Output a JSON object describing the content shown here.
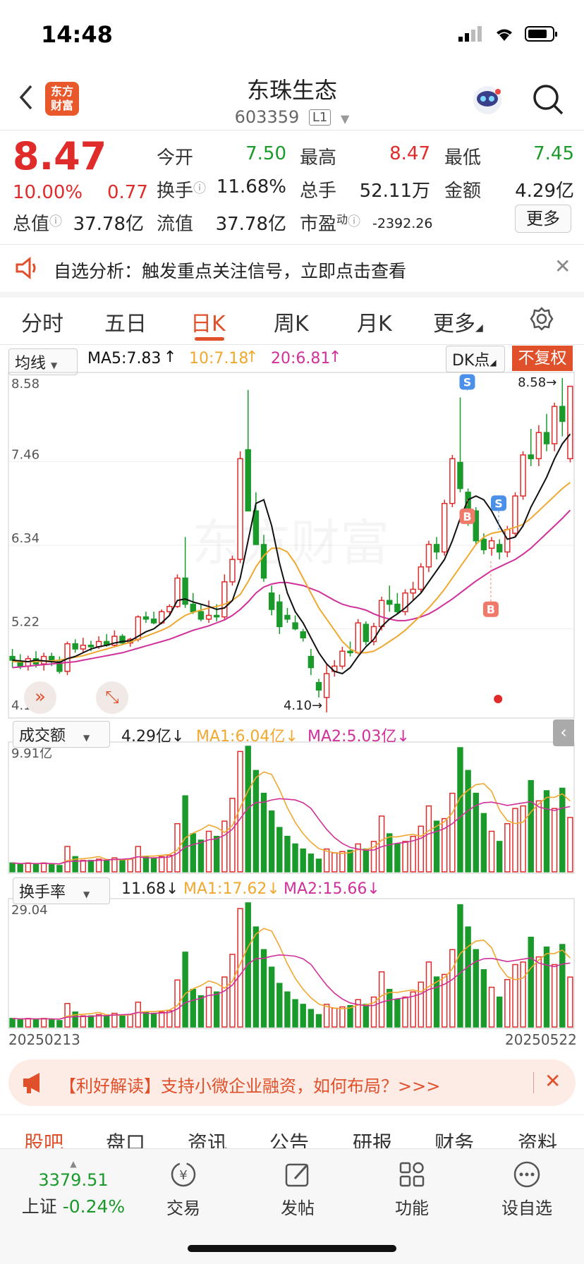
{
  "status_bar": {
    "time": "14:48"
  },
  "header": {
    "title": "东珠生态",
    "code": "603359",
    "level": "L1",
    "logo_line1": "东方",
    "logo_line2": "财富"
  },
  "quote": {
    "price": "8.47",
    "change_pct": "10.00%",
    "change": "0.77",
    "open_label": "今开",
    "open": "7.50",
    "high_label": "最高",
    "high": "8.47",
    "low_label": "最低",
    "low": "7.45",
    "turnover_label": "换手",
    "turnover": "11.68%",
    "volume_label": "总手",
    "volume": "52.11万",
    "amount_label": "金额",
    "amount": "4.29亿",
    "mktcap_label": "总值",
    "mktcap": "37.78亿",
    "float_label": "流值",
    "float": "37.78亿",
    "pe_label": "市盈",
    "pe_sup": "动",
    "pe": "-2392.26",
    "more_button": "更多"
  },
  "alert": {
    "text": "自选分析：触发重点关注信号，立即点击查看"
  },
  "tabs": {
    "items": [
      "分时",
      "五日",
      "日K",
      "周K",
      "月K",
      "更多"
    ]
  },
  "kline": {
    "indicator_select": "均线",
    "ma5": "MA5:7.83",
    "ma10": "10:7.18",
    "ma20": "20:6.81",
    "dk_button": "DK点",
    "adjust_button": "不复权",
    "y_ticks": [
      "8.58",
      "7.46",
      "6.34",
      "5.22",
      "4.10"
    ],
    "max_label": "8.58→",
    "min_label": "4.10→",
    "signals": [
      "S",
      "S",
      "B",
      "B"
    ],
    "watermark": "东方财富"
  },
  "volume_panel": {
    "select": "成交额",
    "value": "4.29亿",
    "ma1": "MA1:6.04亿",
    "ma2": "MA2:5.03亿",
    "max_label": "9.91亿"
  },
  "turnover_panel": {
    "select": "换手率",
    "value": "11.68",
    "ma1": "MA1:17.62",
    "ma2": "MA2:15.66",
    "max_label": "29.04",
    "date_start": "20250213",
    "date_end": "20250522"
  },
  "banner": {
    "text": "【利好解读】支持小微企业融资，如何布局？>>>"
  },
  "bottom_tabs": {
    "items": [
      "股吧",
      "盘口",
      "资讯",
      "公告",
      "研报",
      "财务",
      "资料"
    ]
  },
  "bottom_nav": {
    "index_value": "3379.51",
    "index_name": "上证",
    "index_change": "-0.24%",
    "items": [
      "交易",
      "发帖",
      "功能",
      "设自选"
    ]
  },
  "colors": {
    "up": "#e02b2b",
    "down": "#1a9a2a",
    "ma5": "#111111",
    "ma10": "#f0a830",
    "ma20": "#d0309a",
    "accent": "#e0502b"
  },
  "chart_data": {
    "type": "candlestick",
    "y_range": [
      4.1,
      8.58
    ],
    "date_range": [
      "20250213",
      "20250522"
    ],
    "candles": [
      {
        "o": 4.85,
        "h": 4.95,
        "l": 4.7,
        "c": 4.8
      },
      {
        "o": 4.78,
        "h": 4.88,
        "l": 4.68,
        "c": 4.72
      },
      {
        "o": 4.72,
        "h": 4.86,
        "l": 4.66,
        "c": 4.82
      },
      {
        "o": 4.82,
        "h": 4.92,
        "l": 4.7,
        "c": 4.75
      },
      {
        "o": 4.75,
        "h": 4.9,
        "l": 4.66,
        "c": 4.85
      },
      {
        "o": 4.85,
        "h": 4.9,
        "l": 4.72,
        "c": 4.78
      },
      {
        "o": 4.78,
        "h": 4.85,
        "l": 4.62,
        "c": 4.65
      },
      {
        "o": 4.65,
        "h": 5.05,
        "l": 4.6,
        "c": 5.02
      },
      {
        "o": 5.02,
        "h": 5.08,
        "l": 4.9,
        "c": 4.95
      },
      {
        "o": 4.95,
        "h": 5.1,
        "l": 4.9,
        "c": 5.0
      },
      {
        "o": 5.0,
        "h": 5.06,
        "l": 4.92,
        "c": 4.98
      },
      {
        "o": 4.98,
        "h": 5.12,
        "l": 4.95,
        "c": 5.05
      },
      {
        "o": 5.05,
        "h": 5.15,
        "l": 4.98,
        "c": 5.0
      },
      {
        "o": 5.0,
        "h": 5.2,
        "l": 4.98,
        "c": 5.12
      },
      {
        "o": 5.12,
        "h": 5.15,
        "l": 5.0,
        "c": 5.03
      },
      {
        "o": 5.03,
        "h": 5.1,
        "l": 4.98,
        "c": 5.08
      },
      {
        "o": 5.08,
        "h": 5.4,
        "l": 5.05,
        "c": 5.38
      },
      {
        "o": 5.38,
        "h": 5.45,
        "l": 5.3,
        "c": 5.35
      },
      {
        "o": 5.35,
        "h": 5.45,
        "l": 5.28,
        "c": 5.3
      },
      {
        "o": 5.3,
        "h": 5.48,
        "l": 5.28,
        "c": 5.45
      },
      {
        "o": 5.45,
        "h": 5.55,
        "l": 5.4,
        "c": 5.52
      },
      {
        "o": 5.52,
        "h": 5.95,
        "l": 5.5,
        "c": 5.9
      },
      {
        "o": 5.9,
        "h": 6.45,
        "l": 5.5,
        "c": 5.55
      },
      {
        "o": 5.55,
        "h": 5.7,
        "l": 5.42,
        "c": 5.45
      },
      {
        "o": 5.45,
        "h": 5.55,
        "l": 5.32,
        "c": 5.35
      },
      {
        "o": 5.35,
        "h": 5.6,
        "l": 5.3,
        "c": 5.4
      },
      {
        "o": 5.4,
        "h": 5.55,
        "l": 5.32,
        "c": 5.38
      },
      {
        "o": 5.38,
        "h": 5.95,
        "l": 5.35,
        "c": 5.85
      },
      {
        "o": 5.85,
        "h": 6.2,
        "l": 5.8,
        "c": 6.15
      },
      {
        "o": 6.15,
        "h": 7.6,
        "l": 6.1,
        "c": 7.5
      },
      {
        "o": 7.62,
        "h": 8.42,
        "l": 6.8,
        "c": 6.8
      },
      {
        "o": 6.8,
        "h": 7.05,
        "l": 6.35,
        "c": 6.35
      },
      {
        "o": 6.35,
        "h": 6.48,
        "l": 5.85,
        "c": 5.9
      },
      {
        "o": 5.7,
        "h": 5.8,
        "l": 5.4,
        "c": 5.48
      },
      {
        "o": 5.58,
        "h": 5.68,
        "l": 5.15,
        "c": 5.25
      },
      {
        "o": 5.4,
        "h": 5.5,
        "l": 5.3,
        "c": 5.35
      },
      {
        "o": 5.3,
        "h": 5.4,
        "l": 5.2,
        "c": 5.22
      },
      {
        "o": 5.18,
        "h": 5.22,
        "l": 5.05,
        "c": 5.1
      },
      {
        "o": 4.85,
        "h": 4.95,
        "l": 4.6,
        "c": 4.7
      },
      {
        "o": 4.5,
        "h": 4.55,
        "l": 4.3,
        "c": 4.4
      },
      {
        "o": 4.3,
        "h": 4.75,
        "l": 4.1,
        "c": 4.62
      },
      {
        "o": 4.65,
        "h": 4.8,
        "l": 4.58,
        "c": 4.72
      },
      {
        "o": 4.72,
        "h": 4.98,
        "l": 4.68,
        "c": 4.92
      },
      {
        "o": 4.92,
        "h": 5.05,
        "l": 4.85,
        "c": 4.9
      },
      {
        "o": 4.9,
        "h": 5.35,
        "l": 4.88,
        "c": 5.3
      },
      {
        "o": 5.28,
        "h": 5.32,
        "l": 5.0,
        "c": 5.05
      },
      {
        "o": 5.05,
        "h": 5.3,
        "l": 5.0,
        "c": 5.25
      },
      {
        "o": 5.25,
        "h": 5.65,
        "l": 5.2,
        "c": 5.6
      },
      {
        "o": 5.6,
        "h": 5.8,
        "l": 5.45,
        "c": 5.55
      },
      {
        "o": 5.55,
        "h": 5.7,
        "l": 5.42,
        "c": 5.45
      },
      {
        "o": 5.45,
        "h": 5.75,
        "l": 5.4,
        "c": 5.7
      },
      {
        "o": 5.7,
        "h": 5.85,
        "l": 5.6,
        "c": 5.75
      },
      {
        "o": 5.75,
        "h": 6.1,
        "l": 5.7,
        "c": 6.05
      },
      {
        "o": 6.05,
        "h": 6.4,
        "l": 5.98,
        "c": 6.35
      },
      {
        "o": 6.35,
        "h": 6.45,
        "l": 6.15,
        "c": 6.25
      },
      {
        "o": 6.25,
        "h": 6.95,
        "l": 6.2,
        "c": 6.9
      },
      {
        "o": 6.9,
        "h": 7.55,
        "l": 6.85,
        "c": 7.5
      },
      {
        "o": 7.45,
        "h": 8.32,
        "l": 7.05,
        "c": 7.1
      },
      {
        "o": 7.05,
        "h": 7.1,
        "l": 6.6,
        "c": 6.8
      },
      {
        "o": 6.8,
        "h": 6.85,
        "l": 6.35,
        "c": 6.4
      },
      {
        "o": 6.42,
        "h": 6.5,
        "l": 6.22,
        "c": 6.28
      },
      {
        "o": 6.3,
        "h": 6.45,
        "l": 6.2,
        "c": 6.4
      },
      {
        "o": 6.35,
        "h": 6.42,
        "l": 6.15,
        "c": 6.25
      },
      {
        "o": 6.25,
        "h": 6.6,
        "l": 6.18,
        "c": 6.55
      },
      {
        "o": 6.5,
        "h": 7.05,
        "l": 6.45,
        "c": 7.0
      },
      {
        "o": 7.0,
        "h": 7.6,
        "l": 6.95,
        "c": 7.55
      },
      {
        "o": 7.55,
        "h": 7.9,
        "l": 7.4,
        "c": 7.5
      },
      {
        "o": 7.5,
        "h": 7.95,
        "l": 7.4,
        "c": 7.85
      },
      {
        "o": 7.85,
        "h": 8.1,
        "l": 7.6,
        "c": 7.7
      },
      {
        "o": 7.7,
        "h": 8.25,
        "l": 7.6,
        "c": 8.2
      },
      {
        "o": 8.2,
        "h": 8.58,
        "l": 7.8,
        "c": 8.0
      },
      {
        "o": 7.5,
        "h": 8.47,
        "l": 7.45,
        "c": 8.47
      }
    ],
    "ma5": [
      4.8,
      4.79,
      4.78,
      4.8,
      4.79,
      4.78,
      4.77,
      4.82,
      4.85,
      4.9,
      4.95,
      4.98,
      5.0,
      5.03,
      5.05,
      5.06,
      5.12,
      5.18,
      5.22,
      5.3,
      5.4,
      5.6,
      5.62,
      5.58,
      5.55,
      5.52,
      5.48,
      5.5,
      5.6,
      5.9,
      6.4,
      6.9,
      6.95,
      6.6,
      6.1,
      5.7,
      5.45,
      5.3,
      5.1,
      4.9,
      4.75,
      4.65,
      4.62,
      4.7,
      4.85,
      4.98,
      5.08,
      5.25,
      5.35,
      5.42,
      5.5,
      5.6,
      5.7,
      5.85,
      6.0,
      6.15,
      6.4,
      6.7,
      6.95,
      7.0,
      6.95,
      6.8,
      6.6,
      6.42,
      6.45,
      6.6,
      6.85,
      7.05,
      7.25,
      7.5,
      7.7,
      7.83
    ],
    "ma10": [
      4.78,
      4.78,
      4.78,
      4.78,
      4.79,
      4.79,
      4.8,
      4.82,
      4.84,
      4.86,
      4.89,
      4.92,
      4.95,
      4.98,
      5.01,
      5.04,
      5.08,
      5.12,
      5.16,
      5.2,
      5.25,
      5.33,
      5.4,
      5.44,
      5.47,
      5.5,
      5.52,
      5.55,
      5.6,
      5.68,
      5.85,
      6.05,
      6.2,
      6.3,
      6.3,
      6.25,
      6.1,
      5.9,
      5.7,
      5.5,
      5.35,
      5.2,
      5.05,
      4.95,
      4.9,
      4.9,
      4.92,
      4.98,
      5.05,
      5.12,
      5.2,
      5.3,
      5.4,
      5.5,
      5.62,
      5.75,
      5.9,
      6.05,
      6.2,
      6.35,
      6.45,
      6.5,
      6.52,
      6.55,
      6.58,
      6.62,
      6.7,
      6.8,
      6.9,
      7.0,
      7.1,
      7.18
    ],
    "ma20": [
      4.7,
      4.71,
      4.72,
      4.73,
      4.74,
      4.75,
      4.76,
      4.77,
      4.78,
      4.8,
      4.82,
      4.84,
      4.86,
      4.88,
      4.9,
      4.93,
      4.96,
      4.99,
      5.02,
      5.05,
      5.08,
      5.12,
      5.16,
      5.2,
      5.23,
      5.26,
      5.3,
      5.34,
      5.4,
      5.48,
      5.58,
      5.7,
      5.78,
      5.82,
      5.84,
      5.84,
      5.82,
      5.8,
      5.76,
      5.72,
      5.66,
      5.6,
      5.55,
      5.52,
      5.5,
      5.47,
      5.42,
      5.38,
      5.35,
      5.33,
      5.33,
      5.35,
      5.38,
      5.42,
      5.48,
      5.55,
      5.62,
      5.7,
      5.78,
      5.86,
      5.93,
      6.0,
      6.05,
      6.1,
      6.15,
      6.22,
      6.3,
      6.4,
      6.5,
      6.6,
      6.7,
      6.81
    ],
    "volume": [
      0.7,
      0.6,
      0.7,
      0.6,
      0.7,
      0.6,
      0.5,
      2.0,
      1.2,
      0.9,
      0.9,
      1.0,
      0.9,
      1.1,
      0.9,
      1.0,
      2.0,
      1.2,
      1.1,
      1.2,
      1.3,
      3.8,
      6.0,
      3.0,
      2.5,
      3.2,
      2.8,
      4.0,
      5.8,
      9.5,
      9.91,
      8.0,
      6.2,
      4.8,
      3.5,
      2.8,
      2.2,
      1.8,
      1.4,
      1.0,
      1.8,
      1.5,
      1.6,
      1.7,
      2.2,
      1.8,
      2.4,
      4.4,
      3.0,
      2.2,
      2.4,
      2.8,
      3.6,
      5.2,
      4.0,
      4.2,
      6.2,
      9.8,
      8.0,
      6.2,
      4.6,
      3.2,
      2.4,
      3.8,
      5.0,
      5.2,
      7.2,
      5.6,
      6.4,
      5.0,
      6.6,
      4.29
    ],
    "turnover": [
      2.0,
      1.8,
      2.0,
      1.8,
      2.0,
      1.8,
      1.5,
      5.5,
      3.5,
      2.6,
      2.6,
      2.9,
      2.6,
      3.2,
      2.6,
      2.9,
      5.8,
      3.5,
      3.2,
      3.5,
      3.8,
      11.0,
      17.5,
      8.8,
      7.3,
      9.3,
      8.2,
      11.7,
      17.0,
      27.7,
      29.04,
      23.4,
      18.1,
      14.0,
      10.2,
      8.2,
      6.4,
      5.3,
      4.1,
      2.9,
      5.3,
      4.4,
      4.7,
      5.0,
      6.4,
      5.3,
      7.0,
      12.9,
      8.8,
      6.4,
      7.0,
      8.2,
      10.5,
      15.2,
      11.7,
      12.3,
      18.1,
      28.6,
      23.4,
      18.1,
      13.4,
      9.3,
      7.0,
      11.1,
      14.6,
      15.2,
      21.0,
      16.4,
      18.7,
      14.6,
      19.3,
      11.68
    ]
  }
}
